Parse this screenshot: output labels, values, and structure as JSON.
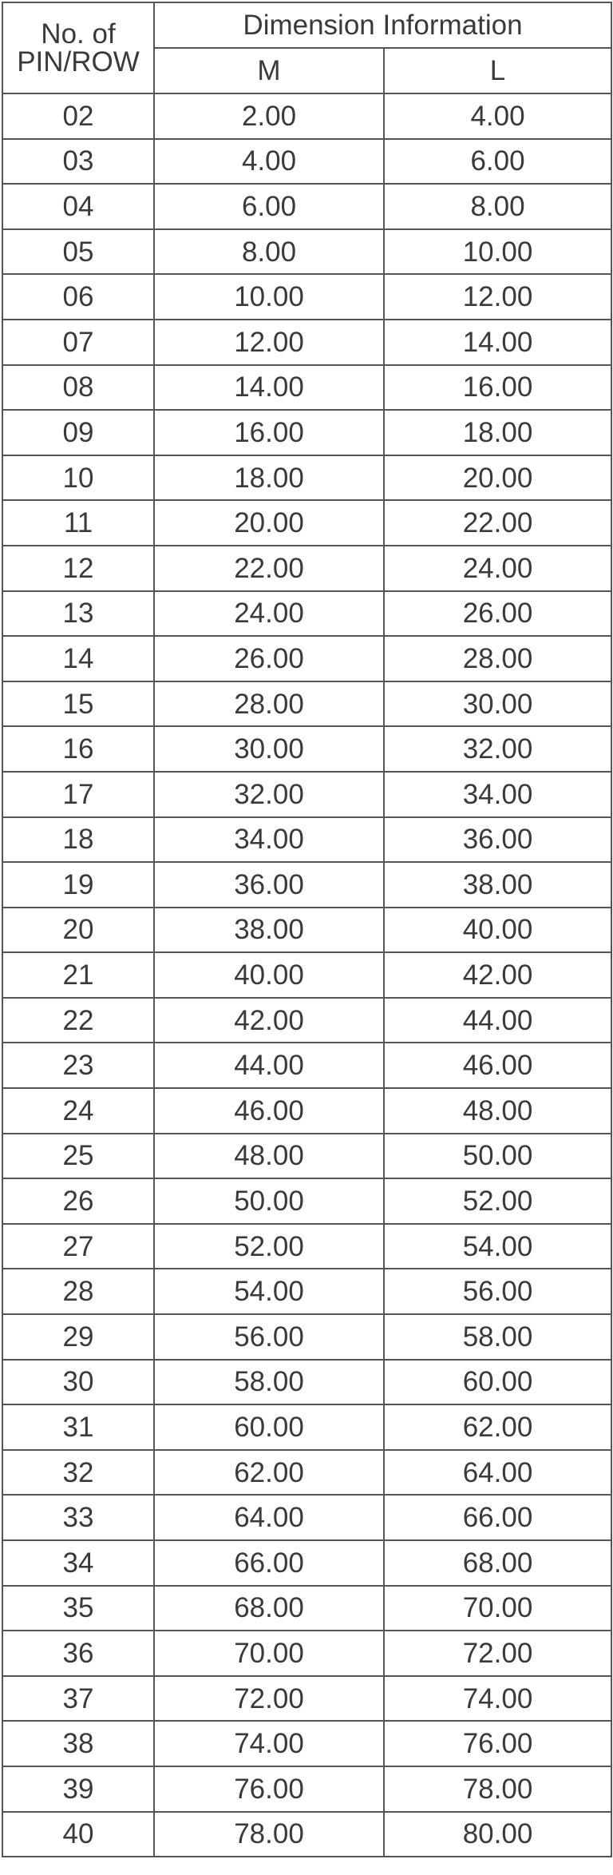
{
  "table": {
    "header": {
      "pin_row_line1": "No. of",
      "pin_row_line2": "PIN/ROW",
      "group": "Dimension Information",
      "col_m": "M",
      "col_l": "L"
    },
    "rows": [
      [
        "02",
        "2.00",
        "4.00"
      ],
      [
        "03",
        "4.00",
        "6.00"
      ],
      [
        "04",
        "6.00",
        "8.00"
      ],
      [
        "05",
        "8.00",
        "10.00"
      ],
      [
        "06",
        "10.00",
        "12.00"
      ],
      [
        "07",
        "12.00",
        "14.00"
      ],
      [
        "08",
        "14.00",
        "16.00"
      ],
      [
        "09",
        "16.00",
        "18.00"
      ],
      [
        "10",
        "18.00",
        "20.00"
      ],
      [
        "11",
        "20.00",
        "22.00"
      ],
      [
        "12",
        "22.00",
        "24.00"
      ],
      [
        "13",
        "24.00",
        "26.00"
      ],
      [
        "14",
        "26.00",
        "28.00"
      ],
      [
        "15",
        "28.00",
        "30.00"
      ],
      [
        "16",
        "30.00",
        "32.00"
      ],
      [
        "17",
        "32.00",
        "34.00"
      ],
      [
        "18",
        "34.00",
        "36.00"
      ],
      [
        "19",
        "36.00",
        "38.00"
      ],
      [
        "20",
        "38.00",
        "40.00"
      ],
      [
        "21",
        "40.00",
        "42.00"
      ],
      [
        "22",
        "42.00",
        "44.00"
      ],
      [
        "23",
        "44.00",
        "46.00"
      ],
      [
        "24",
        "46.00",
        "48.00"
      ],
      [
        "25",
        "48.00",
        "50.00"
      ],
      [
        "26",
        "50.00",
        "52.00"
      ],
      [
        "27",
        "52.00",
        "54.00"
      ],
      [
        "28",
        "54.00",
        "56.00"
      ],
      [
        "29",
        "56.00",
        "58.00"
      ],
      [
        "30",
        "58.00",
        "60.00"
      ],
      [
        "31",
        "60.00",
        "62.00"
      ],
      [
        "32",
        "62.00",
        "64.00"
      ],
      [
        "33",
        "64.00",
        "66.00"
      ],
      [
        "34",
        "66.00",
        "68.00"
      ],
      [
        "35",
        "68.00",
        "70.00"
      ],
      [
        "36",
        "70.00",
        "72.00"
      ],
      [
        "37",
        "72.00",
        "74.00"
      ],
      [
        "38",
        "74.00",
        "76.00"
      ],
      [
        "39",
        "76.00",
        "78.00"
      ],
      [
        "40",
        "78.00",
        "80.00"
      ]
    ]
  }
}
